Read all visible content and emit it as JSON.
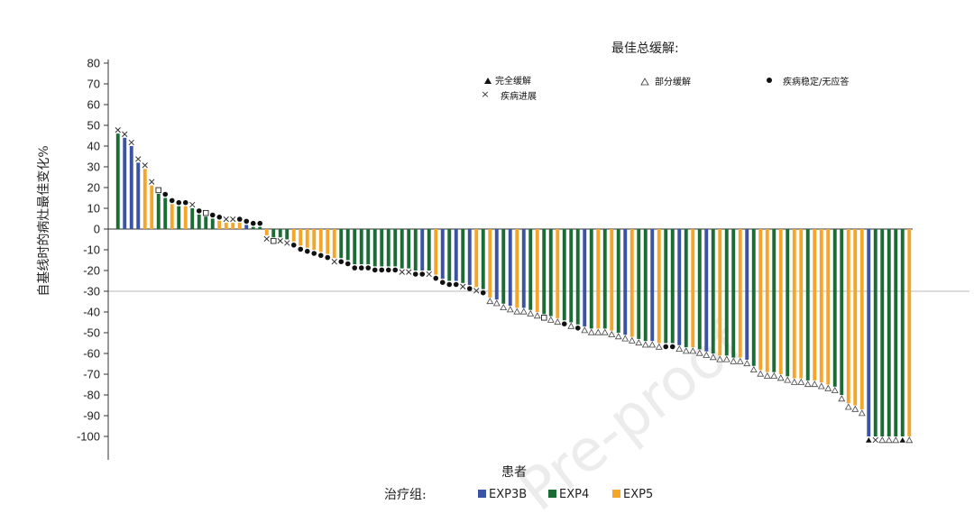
{
  "watermark": "Pre-proof",
  "chart_data": {
    "type": "bar",
    "xlabel": "患者",
    "ylabel": "自基线时的病灶最佳变化%",
    "ylim": [
      -110,
      80
    ],
    "yticks": [
      80,
      70,
      60,
      50,
      40,
      30,
      20,
      10,
      0,
      -10,
      -20,
      -30,
      -40,
      -50,
      -60,
      -70,
      -80,
      -90,
      -100
    ],
    "reference_line": -30,
    "legend_response": {
      "title": "最佳总缓解:",
      "items": [
        {
          "marker": "complete-response-marker",
          "label": "完全缓解"
        },
        {
          "marker": "partial-response-marker",
          "label": "部分缓解"
        },
        {
          "marker": "stable-disease-marker",
          "label": "疾病稳定/无应答"
        },
        {
          "marker": "progressive-disease-marker",
          "label": "疾病进展"
        }
      ]
    },
    "legend_groups": {
      "title": "治疗组:",
      "items": [
        {
          "name": "EXP3B",
          "color": "#3a53a4"
        },
        {
          "name": "EXP4",
          "color": "#1b6b35"
        },
        {
          "name": "EXP5",
          "color": "#f4a62a"
        }
      ]
    },
    "bars": [
      {
        "v": 46,
        "g": "EXP4",
        "m": "PD"
      },
      {
        "v": 44,
        "g": "EXP3B",
        "m": "PD"
      },
      {
        "v": 40,
        "g": "EXP3B",
        "m": "PD"
      },
      {
        "v": 32,
        "g": "EXP3B",
        "m": "PD"
      },
      {
        "v": 29,
        "g": "EXP5",
        "m": "PD"
      },
      {
        "v": 21,
        "g": "EXP5",
        "m": "PD"
      },
      {
        "v": 17,
        "g": "EXP4",
        "m": "NE"
      },
      {
        "v": 15,
        "g": "EXP4",
        "m": "SD"
      },
      {
        "v": 12,
        "g": "EXP5",
        "m": "SD"
      },
      {
        "v": 11,
        "g": "EXP4",
        "m": "SD"
      },
      {
        "v": 11,
        "g": "EXP5",
        "m": "SD"
      },
      {
        "v": 10,
        "g": "EXP4",
        "m": "PD"
      },
      {
        "v": 7,
        "g": "EXP4",
        "m": "SD"
      },
      {
        "v": 6,
        "g": "EXP4",
        "m": "NE"
      },
      {
        "v": 5,
        "g": "EXP4",
        "m": "SD"
      },
      {
        "v": 4,
        "g": "EXP5",
        "m": "SD"
      },
      {
        "v": 3,
        "g": "EXP5",
        "m": "PD"
      },
      {
        "v": 3,
        "g": "EXP5",
        "m": "PD"
      },
      {
        "v": 3,
        "g": "EXP5",
        "m": "SD"
      },
      {
        "v": 2,
        "g": "EXP3B",
        "m": "SD"
      },
      {
        "v": 1,
        "g": "EXP4",
        "m": "SD"
      },
      {
        "v": 1,
        "g": "EXP4",
        "m": "SD"
      },
      {
        "v": -3,
        "g": "EXP5",
        "m": "PD"
      },
      {
        "v": -4,
        "g": "EXP4",
        "m": "NE"
      },
      {
        "v": -4,
        "g": "EXP4",
        "m": "PD"
      },
      {
        "v": -5,
        "g": "EXP4",
        "m": "PD"
      },
      {
        "v": -6,
        "g": "EXP5",
        "m": "SD"
      },
      {
        "v": -8,
        "g": "EXP5",
        "m": "SD"
      },
      {
        "v": -9,
        "g": "EXP5",
        "m": "SD"
      },
      {
        "v": -10,
        "g": "EXP5",
        "m": "SD"
      },
      {
        "v": -11,
        "g": "EXP5",
        "m": "SD"
      },
      {
        "v": -12,
        "g": "EXP5",
        "m": "SD"
      },
      {
        "v": -14,
        "g": "EXP5",
        "m": "PD"
      },
      {
        "v": -14,
        "g": "EXP4",
        "m": "SD"
      },
      {
        "v": -15,
        "g": "EXP4",
        "m": "SD"
      },
      {
        "v": -17,
        "g": "EXP4",
        "m": "SD"
      },
      {
        "v": -17,
        "g": "EXP4",
        "m": "SD"
      },
      {
        "v": -17,
        "g": "EXP4",
        "m": "SD"
      },
      {
        "v": -18,
        "g": "EXP4",
        "m": "SD"
      },
      {
        "v": -18,
        "g": "EXP4",
        "m": "SD"
      },
      {
        "v": -18,
        "g": "EXP4",
        "m": "SD"
      },
      {
        "v": -18,
        "g": "EXP4",
        "m": "SD"
      },
      {
        "v": -19,
        "g": "EXP4",
        "m": "PD"
      },
      {
        "v": -19,
        "g": "EXP4",
        "m": "PD"
      },
      {
        "v": -20,
        "g": "EXP4",
        "m": "SD"
      },
      {
        "v": -20,
        "g": "EXP3B",
        "m": "SD"
      },
      {
        "v": -20,
        "g": "EXP4",
        "m": "PD"
      },
      {
        "v": -22,
        "g": "EXP5",
        "m": "SD"
      },
      {
        "v": -24,
        "g": "EXP3B",
        "m": "SD"
      },
      {
        "v": -25,
        "g": "EXP4",
        "m": "SD"
      },
      {
        "v": -25,
        "g": "EXP3B",
        "m": "SD"
      },
      {
        "v": -26,
        "g": "EXP4",
        "m": "PD"
      },
      {
        "v": -27,
        "g": "EXP3B",
        "m": "SD"
      },
      {
        "v": -28,
        "g": "EXP5",
        "m": "PD"
      },
      {
        "v": -29,
        "g": "EXP4",
        "m": "SD"
      },
      {
        "v": -33,
        "g": "EXP5",
        "m": "PR"
      },
      {
        "v": -34,
        "g": "EXP3B",
        "m": "PR"
      },
      {
        "v": -36,
        "g": "EXP4",
        "m": "PR"
      },
      {
        "v": -37,
        "g": "EXP3B",
        "m": "PR"
      },
      {
        "v": -38,
        "g": "EXP5",
        "m": "PR"
      },
      {
        "v": -38,
        "g": "EXP3B",
        "m": "PR"
      },
      {
        "v": -39,
        "g": "EXP4",
        "m": "PR"
      },
      {
        "v": -40,
        "g": "EXP5",
        "m": "PR"
      },
      {
        "v": -41,
        "g": "EXP4",
        "m": "NE"
      },
      {
        "v": -42,
        "g": "EXP4",
        "m": "PR"
      },
      {
        "v": -43,
        "g": "EXP5",
        "m": "PR"
      },
      {
        "v": -44,
        "g": "EXP4",
        "m": "SD"
      },
      {
        "v": -45,
        "g": "EXP4",
        "m": "PR"
      },
      {
        "v": -46,
        "g": "EXP4",
        "m": "SD"
      },
      {
        "v": -47,
        "g": "EXP3B",
        "m": "PR"
      },
      {
        "v": -48,
        "g": "EXP4",
        "m": "PR"
      },
      {
        "v": -48,
        "g": "EXP5",
        "m": "PR"
      },
      {
        "v": -48,
        "g": "EXP4",
        "m": "PR"
      },
      {
        "v": -49,
        "g": "EXP5",
        "m": "PR"
      },
      {
        "v": -50,
        "g": "EXP4",
        "m": "PR"
      },
      {
        "v": -51,
        "g": "EXP3B",
        "m": "PR"
      },
      {
        "v": -52,
        "g": "EXP5",
        "m": "PR"
      },
      {
        "v": -53,
        "g": "EXP4",
        "m": "PR"
      },
      {
        "v": -54,
        "g": "EXP4",
        "m": "PR"
      },
      {
        "v": -54,
        "g": "EXP3B",
        "m": "PR"
      },
      {
        "v": -55,
        "g": "EXP5",
        "m": "PR"
      },
      {
        "v": -55,
        "g": "EXP4",
        "m": "SD"
      },
      {
        "v": -55,
        "g": "EXP4",
        "m": "SD"
      },
      {
        "v": -56,
        "g": "EXP3B",
        "m": "PR"
      },
      {
        "v": -57,
        "g": "EXP4",
        "m": "PR"
      },
      {
        "v": -57,
        "g": "EXP5",
        "m": "PR"
      },
      {
        "v": -58,
        "g": "EXP4",
        "m": "PR"
      },
      {
        "v": -59,
        "g": "EXP3B",
        "m": "PR"
      },
      {
        "v": -60,
        "g": "EXP4",
        "m": "PR"
      },
      {
        "v": -61,
        "g": "EXP5",
        "m": "PR"
      },
      {
        "v": -61,
        "g": "EXP4",
        "m": "PR"
      },
      {
        "v": -62,
        "g": "EXP4",
        "m": "PR"
      },
      {
        "v": -62,
        "g": "EXP5",
        "m": "PR"
      },
      {
        "v": -63,
        "g": "EXP3B",
        "m": "PR"
      },
      {
        "v": -66,
        "g": "EXP4",
        "m": "PR"
      },
      {
        "v": -68,
        "g": "EXP5",
        "m": "PR"
      },
      {
        "v": -69,
        "g": "EXP5",
        "m": "PR"
      },
      {
        "v": -69,
        "g": "EXP4",
        "m": "PR"
      },
      {
        "v": -70,
        "g": "EXP5",
        "m": "PR"
      },
      {
        "v": -71,
        "g": "EXP4",
        "m": "PR"
      },
      {
        "v": -72,
        "g": "EXP5",
        "m": "PR"
      },
      {
        "v": -72,
        "g": "EXP5",
        "m": "PR"
      },
      {
        "v": -73,
        "g": "EXP4",
        "m": "PR"
      },
      {
        "v": -73,
        "g": "EXP5",
        "m": "PR"
      },
      {
        "v": -74,
        "g": "EXP5",
        "m": "PR"
      },
      {
        "v": -75,
        "g": "EXP5",
        "m": "PR"
      },
      {
        "v": -76,
        "g": "EXP4",
        "m": "PR"
      },
      {
        "v": -80,
        "g": "EXP4",
        "m": "PR"
      },
      {
        "v": -84,
        "g": "EXP5",
        "m": "PR"
      },
      {
        "v": -85,
        "g": "EXP5",
        "m": "PR"
      },
      {
        "v": -87,
        "g": "EXP5",
        "m": "PR"
      },
      {
        "v": -100,
        "g": "EXP3B",
        "m": "CR"
      },
      {
        "v": -100,
        "g": "EXP4",
        "m": "PD"
      },
      {
        "v": -100,
        "g": "EXP4",
        "m": "PR"
      },
      {
        "v": -100,
        "g": "EXP4",
        "m": "PR"
      },
      {
        "v": -100,
        "g": "EXP4",
        "m": "PR"
      },
      {
        "v": -100,
        "g": "EXP4",
        "m": "CR"
      },
      {
        "v": -100,
        "g": "EXP5",
        "m": "PR"
      }
    ]
  }
}
